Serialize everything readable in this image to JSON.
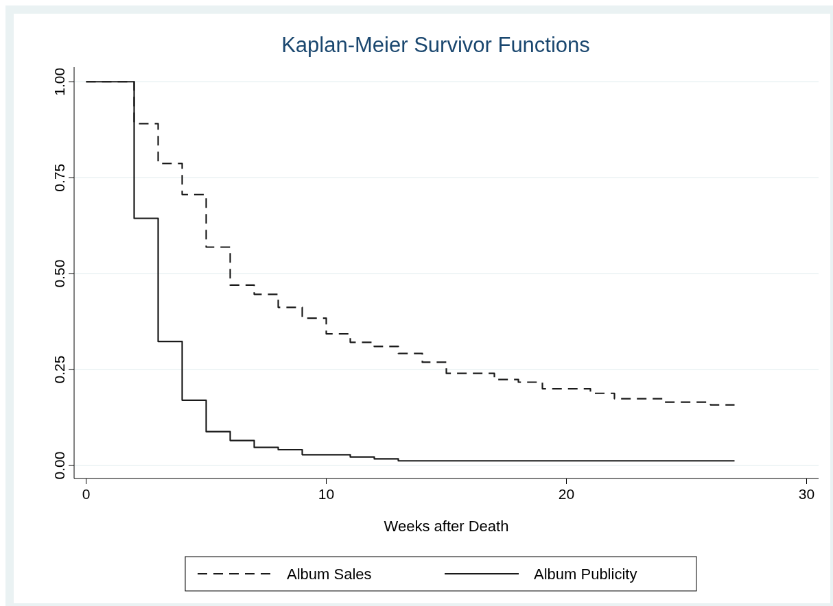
{
  "chart_data": {
    "type": "step",
    "title": "Kaplan-Meier Survivor Functions",
    "xlabel": "Weeks after Death",
    "xlim": [
      -0.5,
      30.5
    ],
    "xticks": [
      0,
      10,
      20,
      30
    ],
    "ylim": [
      -0.034,
      1.038
    ],
    "yticks": [
      {
        "value": 0,
        "label": "0.00"
      },
      {
        "value": 0.25,
        "label": "0.25"
      },
      {
        "value": 0.5,
        "label": "0.50"
      },
      {
        "value": 0.75,
        "label": "0.75"
      },
      {
        "value": 1,
        "label": "1.00"
      }
    ],
    "grid": "y",
    "legend": "bottom",
    "series": [
      {
        "name": "Album Sales",
        "color": "#1a1a1a",
        "line_style": "dashed",
        "x": [
          0,
          2,
          3,
          4,
          5,
          6,
          7,
          8,
          9,
          10,
          11,
          12,
          13,
          14,
          15,
          17,
          18,
          19,
          21,
          22,
          24,
          26,
          27
        ],
        "values": [
          1,
          0.891,
          0.787,
          0.706,
          0.569,
          0.47,
          0.446,
          0.412,
          0.384,
          0.343,
          0.321,
          0.31,
          0.292,
          0.269,
          0.24,
          0.224,
          0.217,
          0.2,
          0.188,
          0.174,
          0.165,
          0.158,
          0.158
        ]
      },
      {
        "name": "Album Publicity",
        "color": "#1a1a1a",
        "line_style": "solid",
        "x": [
          0,
          2,
          3,
          4,
          5,
          6,
          7,
          8,
          9,
          11,
          12,
          13,
          27
        ],
        "values": [
          1,
          0.644,
          0.323,
          0.17,
          0.088,
          0.065,
          0.047,
          0.041,
          0.028,
          0.022,
          0.017,
          0.012,
          0.012
        ]
      }
    ]
  }
}
